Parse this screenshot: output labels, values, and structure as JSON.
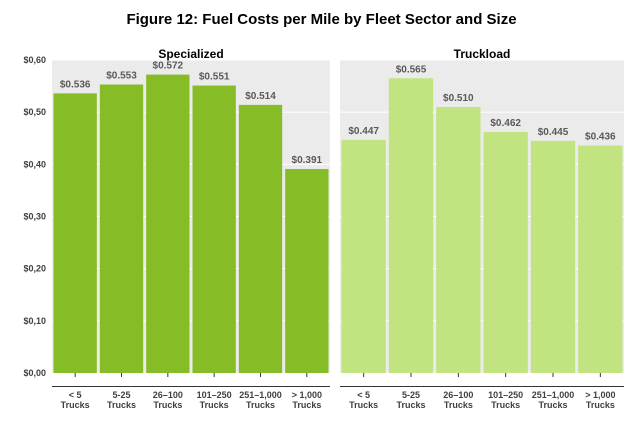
{
  "chart_data": {
    "type": "bar",
    "title": "Figure 12: Fuel Costs per Mile by Fleet Sector and Size",
    "xlabel": "",
    "ylabel": "",
    "ylim": [
      0,
      0.6
    ],
    "yticks": [
      "$0,00",
      "$0,10",
      "$0,20",
      "$0,30",
      "$0,40",
      "$0,50",
      "$0,60"
    ],
    "grid": true,
    "categories": [
      [
        "< 5",
        "Trucks"
      ],
      [
        "5-25",
        "Trucks"
      ],
      [
        "26–100",
        "Trucks"
      ],
      [
        "101–250",
        "Trucks"
      ],
      [
        "251–1,000",
        "Trucks"
      ],
      [
        "> 1,000",
        "Trucks"
      ]
    ],
    "panels": [
      {
        "name": "Specialized",
        "color": "#86bc25",
        "values": [
          0.536,
          0.553,
          0.572,
          0.551,
          0.514,
          0.391
        ],
        "labels": [
          "$0.536",
          "$0.553",
          "$0.572",
          "$0.551",
          "$0.514",
          "$0.391"
        ]
      },
      {
        "name": "Truckload",
        "color": "#c1e481",
        "values": [
          0.447,
          0.565,
          0.51,
          0.462,
          0.445,
          0.436
        ],
        "labels": [
          "$0.447",
          "$0.565",
          "$0.510",
          "$0.462",
          "$0.445",
          "$0.436"
        ]
      }
    ],
    "colors": {
      "panel_background": "#ebebeb",
      "gridline": "#ffffff",
      "axis_text": "#404040",
      "data_label": "#595959"
    }
  }
}
